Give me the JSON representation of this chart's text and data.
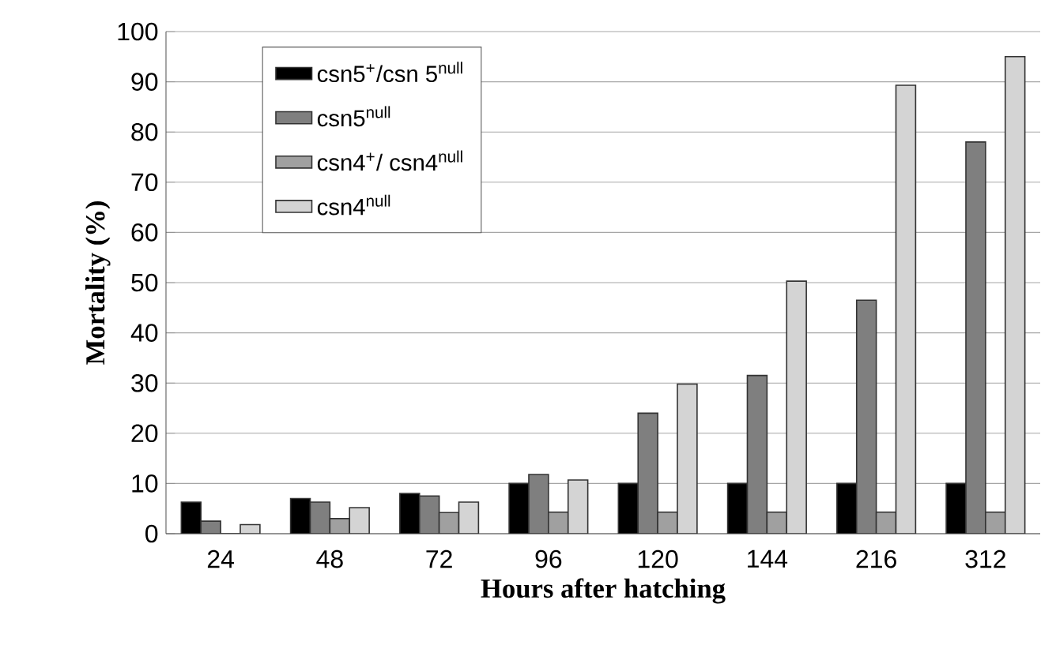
{
  "chart_data": {
    "type": "bar",
    "xlabel": "Hours after hatching",
    "ylabel": "Mortality (%)",
    "categories": [
      "24",
      "48",
      "72",
      "96",
      "120",
      "144",
      "216",
      "312"
    ],
    "series": [
      {
        "name": "csn5$^{+}$/csn 5$^{null}$",
        "color": "#000000",
        "values": [
          6.3,
          7,
          8,
          10,
          10,
          10,
          10,
          10
        ]
      },
      {
        "name": "csn5$^{null}$",
        "color": "#7f7f7f",
        "values": [
          2.5,
          6.3,
          7.5,
          11.8,
          24,
          31.5,
          46.5,
          78
        ]
      },
      {
        "name": "csn4$^{+}$/ csn4$^{null}$",
        "color": "#a0a0a0",
        "values": [
          0,
          3,
          4.2,
          4.3,
          4.3,
          4.3,
          4.3,
          4.3
        ]
      },
      {
        "name": "csn4$^{null}$",
        "color": "#d4d4d4",
        "values": [
          1.8,
          5.2,
          6.3,
          10.7,
          29.8,
          50.3,
          89.3,
          95
        ]
      }
    ],
    "ylim": [
      0,
      100
    ],
    "yticks": [
      0,
      10,
      20,
      30,
      40,
      50,
      60,
      70,
      80,
      90,
      100
    ],
    "grid": "y",
    "legend": "top left"
  }
}
